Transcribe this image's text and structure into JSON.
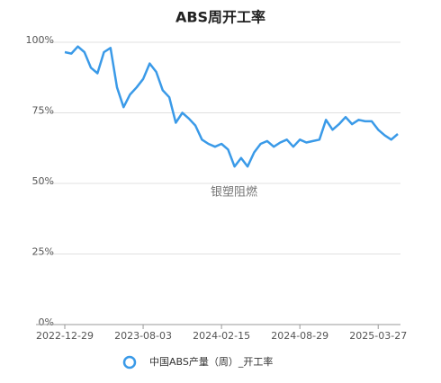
{
  "chart_data": {
    "type": "line",
    "title": "ABS周开工率",
    "annotation": "银塑阻燃",
    "categories": [
      "2022-12-29",
      null,
      null,
      null,
      null,
      null,
      null,
      null,
      null,
      null,
      null,
      null,
      "2023-08-03",
      null,
      null,
      null,
      null,
      null,
      null,
      null,
      null,
      null,
      null,
      null,
      "2024-02-15",
      null,
      null,
      null,
      null,
      null,
      null,
      null,
      null,
      null,
      null,
      null,
      "2024-08-29",
      null,
      null,
      null,
      null,
      null,
      null,
      null,
      null,
      null,
      null,
      null,
      "2025-03-27",
      null,
      null,
      null
    ],
    "series": [
      {
        "name": "中国ABS产量（周）_开工率",
        "color": "#3a9ae8",
        "values": [
          96.5,
          96,
          98.5,
          96.5,
          91,
          89,
          96.5,
          98,
          84,
          77,
          81.5,
          84,
          87,
          92.5,
          89.5,
          83,
          80.5,
          71.5,
          75,
          73,
          70.5,
          65.5,
          64,
          63,
          64,
          62,
          56,
          59,
          56,
          61,
          64,
          65,
          63,
          64.5,
          65.5,
          63,
          65.5,
          64.5,
          65,
          65.5,
          72.5,
          69,
          71,
          73.5,
          71,
          72.5,
          72,
          72,
          69,
          67,
          65.5,
          67.5
        ]
      }
    ],
    "ylim": [
      0,
      100
    ],
    "yticks": [
      {
        "value": 0,
        "label": "0%"
      },
      {
        "value": 25,
        "label": "25%"
      },
      {
        "value": 50,
        "label": "50%"
      },
      {
        "value": 75,
        "label": "75%"
      },
      {
        "value": 100,
        "label": "100%"
      }
    ],
    "grid": true,
    "legend": "bottom"
  }
}
